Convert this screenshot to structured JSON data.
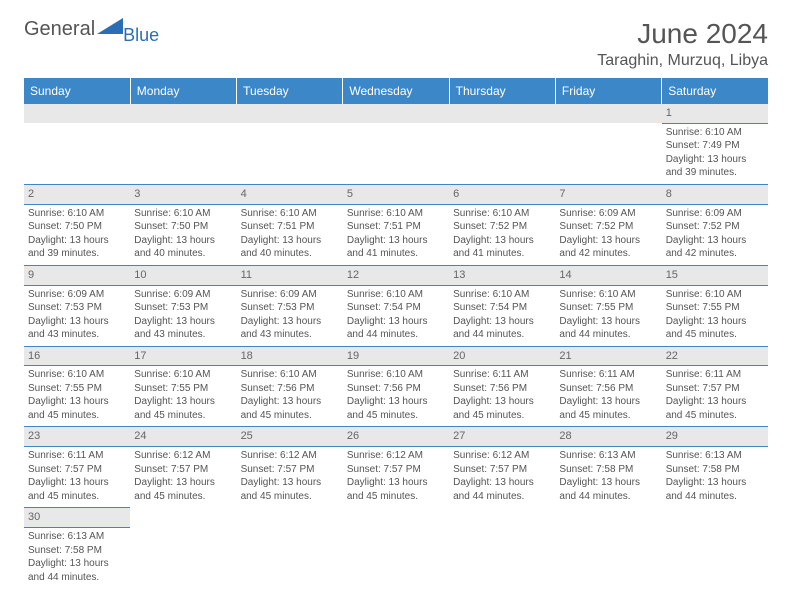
{
  "logo": {
    "text1": "General",
    "text2": "Blue",
    "triangle_color": "#2a6fb5"
  },
  "title": "June 2024",
  "location": "Taraghin, Murzuq, Libya",
  "header_bg": "#3b87c8",
  "header_text": "#ffffff",
  "daynum_bg": "#e8e8e8",
  "border_color": "#3b87c8",
  "dayNames": [
    "Sunday",
    "Monday",
    "Tuesday",
    "Wednesday",
    "Thursday",
    "Friday",
    "Saturday"
  ],
  "weeks": [
    [
      null,
      null,
      null,
      null,
      null,
      null,
      {
        "n": "1",
        "sunrise": "6:10 AM",
        "sunset": "7:49 PM",
        "daylight": "13 hours and 39 minutes."
      }
    ],
    [
      {
        "n": "2",
        "sunrise": "6:10 AM",
        "sunset": "7:50 PM",
        "daylight": "13 hours and 39 minutes."
      },
      {
        "n": "3",
        "sunrise": "6:10 AM",
        "sunset": "7:50 PM",
        "daylight": "13 hours and 40 minutes."
      },
      {
        "n": "4",
        "sunrise": "6:10 AM",
        "sunset": "7:51 PM",
        "daylight": "13 hours and 40 minutes."
      },
      {
        "n": "5",
        "sunrise": "6:10 AM",
        "sunset": "7:51 PM",
        "daylight": "13 hours and 41 minutes."
      },
      {
        "n": "6",
        "sunrise": "6:10 AM",
        "sunset": "7:52 PM",
        "daylight": "13 hours and 41 minutes."
      },
      {
        "n": "7",
        "sunrise": "6:09 AM",
        "sunset": "7:52 PM",
        "daylight": "13 hours and 42 minutes."
      },
      {
        "n": "8",
        "sunrise": "6:09 AM",
        "sunset": "7:52 PM",
        "daylight": "13 hours and 42 minutes."
      }
    ],
    [
      {
        "n": "9",
        "sunrise": "6:09 AM",
        "sunset": "7:53 PM",
        "daylight": "13 hours and 43 minutes."
      },
      {
        "n": "10",
        "sunrise": "6:09 AM",
        "sunset": "7:53 PM",
        "daylight": "13 hours and 43 minutes."
      },
      {
        "n": "11",
        "sunrise": "6:09 AM",
        "sunset": "7:53 PM",
        "daylight": "13 hours and 43 minutes."
      },
      {
        "n": "12",
        "sunrise": "6:10 AM",
        "sunset": "7:54 PM",
        "daylight": "13 hours and 44 minutes."
      },
      {
        "n": "13",
        "sunrise": "6:10 AM",
        "sunset": "7:54 PM",
        "daylight": "13 hours and 44 minutes."
      },
      {
        "n": "14",
        "sunrise": "6:10 AM",
        "sunset": "7:55 PM",
        "daylight": "13 hours and 44 minutes."
      },
      {
        "n": "15",
        "sunrise": "6:10 AM",
        "sunset": "7:55 PM",
        "daylight": "13 hours and 45 minutes."
      }
    ],
    [
      {
        "n": "16",
        "sunrise": "6:10 AM",
        "sunset": "7:55 PM",
        "daylight": "13 hours and 45 minutes."
      },
      {
        "n": "17",
        "sunrise": "6:10 AM",
        "sunset": "7:55 PM",
        "daylight": "13 hours and 45 minutes."
      },
      {
        "n": "18",
        "sunrise": "6:10 AM",
        "sunset": "7:56 PM",
        "daylight": "13 hours and 45 minutes."
      },
      {
        "n": "19",
        "sunrise": "6:10 AM",
        "sunset": "7:56 PM",
        "daylight": "13 hours and 45 minutes."
      },
      {
        "n": "20",
        "sunrise": "6:11 AM",
        "sunset": "7:56 PM",
        "daylight": "13 hours and 45 minutes."
      },
      {
        "n": "21",
        "sunrise": "6:11 AM",
        "sunset": "7:56 PM",
        "daylight": "13 hours and 45 minutes."
      },
      {
        "n": "22",
        "sunrise": "6:11 AM",
        "sunset": "7:57 PM",
        "daylight": "13 hours and 45 minutes."
      }
    ],
    [
      {
        "n": "23",
        "sunrise": "6:11 AM",
        "sunset": "7:57 PM",
        "daylight": "13 hours and 45 minutes."
      },
      {
        "n": "24",
        "sunrise": "6:12 AM",
        "sunset": "7:57 PM",
        "daylight": "13 hours and 45 minutes."
      },
      {
        "n": "25",
        "sunrise": "6:12 AM",
        "sunset": "7:57 PM",
        "daylight": "13 hours and 45 minutes."
      },
      {
        "n": "26",
        "sunrise": "6:12 AM",
        "sunset": "7:57 PM",
        "daylight": "13 hours and 45 minutes."
      },
      {
        "n": "27",
        "sunrise": "6:12 AM",
        "sunset": "7:57 PM",
        "daylight": "13 hours and 44 minutes."
      },
      {
        "n": "28",
        "sunrise": "6:13 AM",
        "sunset": "7:58 PM",
        "daylight": "13 hours and 44 minutes."
      },
      {
        "n": "29",
        "sunrise": "6:13 AM",
        "sunset": "7:58 PM",
        "daylight": "13 hours and 44 minutes."
      }
    ],
    [
      {
        "n": "30",
        "sunrise": "6:13 AM",
        "sunset": "7:58 PM",
        "daylight": "13 hours and 44 minutes."
      },
      null,
      null,
      null,
      null,
      null,
      null
    ]
  ],
  "labels": {
    "sunrise": "Sunrise:",
    "sunset": "Sunset:",
    "daylight": "Daylight:"
  }
}
